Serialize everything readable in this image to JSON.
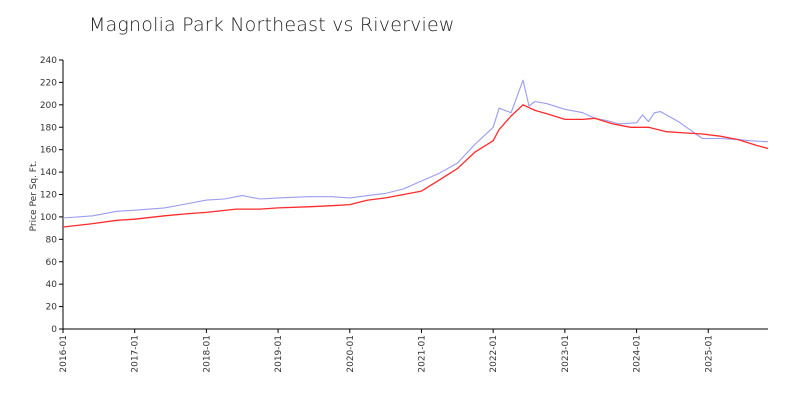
{
  "chart_data": {
    "type": "line",
    "title": "Magnolia Park Northeast vs Riverview",
    "xlabel": "",
    "ylabel": "Price Per Sq. Ft.",
    "ylim": [
      0,
      240
    ],
    "yticks": [
      0,
      20,
      40,
      60,
      80,
      100,
      120,
      140,
      160,
      180,
      200,
      220,
      240
    ],
    "xlim": [
      "2016-01",
      "2025-11"
    ],
    "xticks": [
      "2016-01",
      "2017-01",
      "2018-01",
      "2019-01",
      "2020-01",
      "2021-01",
      "2022-01",
      "2023-01",
      "2024-01",
      "2025-01"
    ],
    "grid": false,
    "legend": "none",
    "series": [
      {
        "color": "#9a9cf0",
        "points": [
          [
            "2016-01",
            99
          ],
          [
            "2016-06",
            101
          ],
          [
            "2016-10",
            105
          ],
          [
            "2017-01",
            106
          ],
          [
            "2017-06",
            108
          ],
          [
            "2017-10",
            112
          ],
          [
            "2018-01",
            115
          ],
          [
            "2018-04",
            116
          ],
          [
            "2018-07",
            119
          ],
          [
            "2018-10",
            116
          ],
          [
            "2019-01",
            117
          ],
          [
            "2019-06",
            118
          ],
          [
            "2019-10",
            118
          ],
          [
            "2020-01",
            117
          ],
          [
            "2020-04",
            119
          ],
          [
            "2020-07",
            121
          ],
          [
            "2020-10",
            125
          ],
          [
            "2021-01",
            132
          ],
          [
            "2021-04",
            139
          ],
          [
            "2021-07",
            148
          ],
          [
            "2021-10",
            165
          ],
          [
            "2022-01",
            180
          ],
          [
            "2022-02",
            197
          ],
          [
            "2022-04",
            193
          ],
          [
            "2022-06",
            222
          ],
          [
            "2022-07",
            199
          ],
          [
            "2022-08",
            203
          ],
          [
            "2022-10",
            201
          ],
          [
            "2023-01",
            196
          ],
          [
            "2023-04",
            193
          ],
          [
            "2023-06",
            188
          ],
          [
            "2023-08",
            186
          ],
          [
            "2023-10",
            183
          ],
          [
            "2024-01",
            184
          ],
          [
            "2024-02",
            191
          ],
          [
            "2024-03",
            185
          ],
          [
            "2024-04",
            193
          ],
          [
            "2024-05",
            194
          ],
          [
            "2024-08",
            185
          ],
          [
            "2024-12",
            170
          ],
          [
            "2025-03",
            170
          ],
          [
            "2025-06",
            169
          ],
          [
            "2025-08",
            168
          ],
          [
            "2025-11",
            167
          ]
        ]
      },
      {
        "color": "#ff2a2a",
        "points": [
          [
            "2016-01",
            91
          ],
          [
            "2016-06",
            94
          ],
          [
            "2016-10",
            97
          ],
          [
            "2017-01",
            98
          ],
          [
            "2017-06",
            101
          ],
          [
            "2017-10",
            103
          ],
          [
            "2018-01",
            104
          ],
          [
            "2018-06",
            107
          ],
          [
            "2018-10",
            107
          ],
          [
            "2019-01",
            108
          ],
          [
            "2019-06",
            109
          ],
          [
            "2019-10",
            110
          ],
          [
            "2020-01",
            111
          ],
          [
            "2020-04",
            115
          ],
          [
            "2020-07",
            117
          ],
          [
            "2020-10",
            120
          ],
          [
            "2021-01",
            123
          ],
          [
            "2021-04",
            133
          ],
          [
            "2021-07",
            143
          ],
          [
            "2021-10",
            158
          ],
          [
            "2022-01",
            168
          ],
          [
            "2022-02",
            178
          ],
          [
            "2022-04",
            190
          ],
          [
            "2022-06",
            200
          ],
          [
            "2022-08",
            195
          ],
          [
            "2022-10",
            192
          ],
          [
            "2023-01",
            187
          ],
          [
            "2023-04",
            187
          ],
          [
            "2023-06",
            188
          ],
          [
            "2023-09",
            183
          ],
          [
            "2023-12",
            180
          ],
          [
            "2024-03",
            180
          ],
          [
            "2024-06",
            176
          ],
          [
            "2024-09",
            175
          ],
          [
            "2024-12",
            174
          ],
          [
            "2025-03",
            172
          ],
          [
            "2025-06",
            169
          ],
          [
            "2025-09",
            164
          ],
          [
            "2025-11",
            161
          ]
        ]
      }
    ]
  }
}
